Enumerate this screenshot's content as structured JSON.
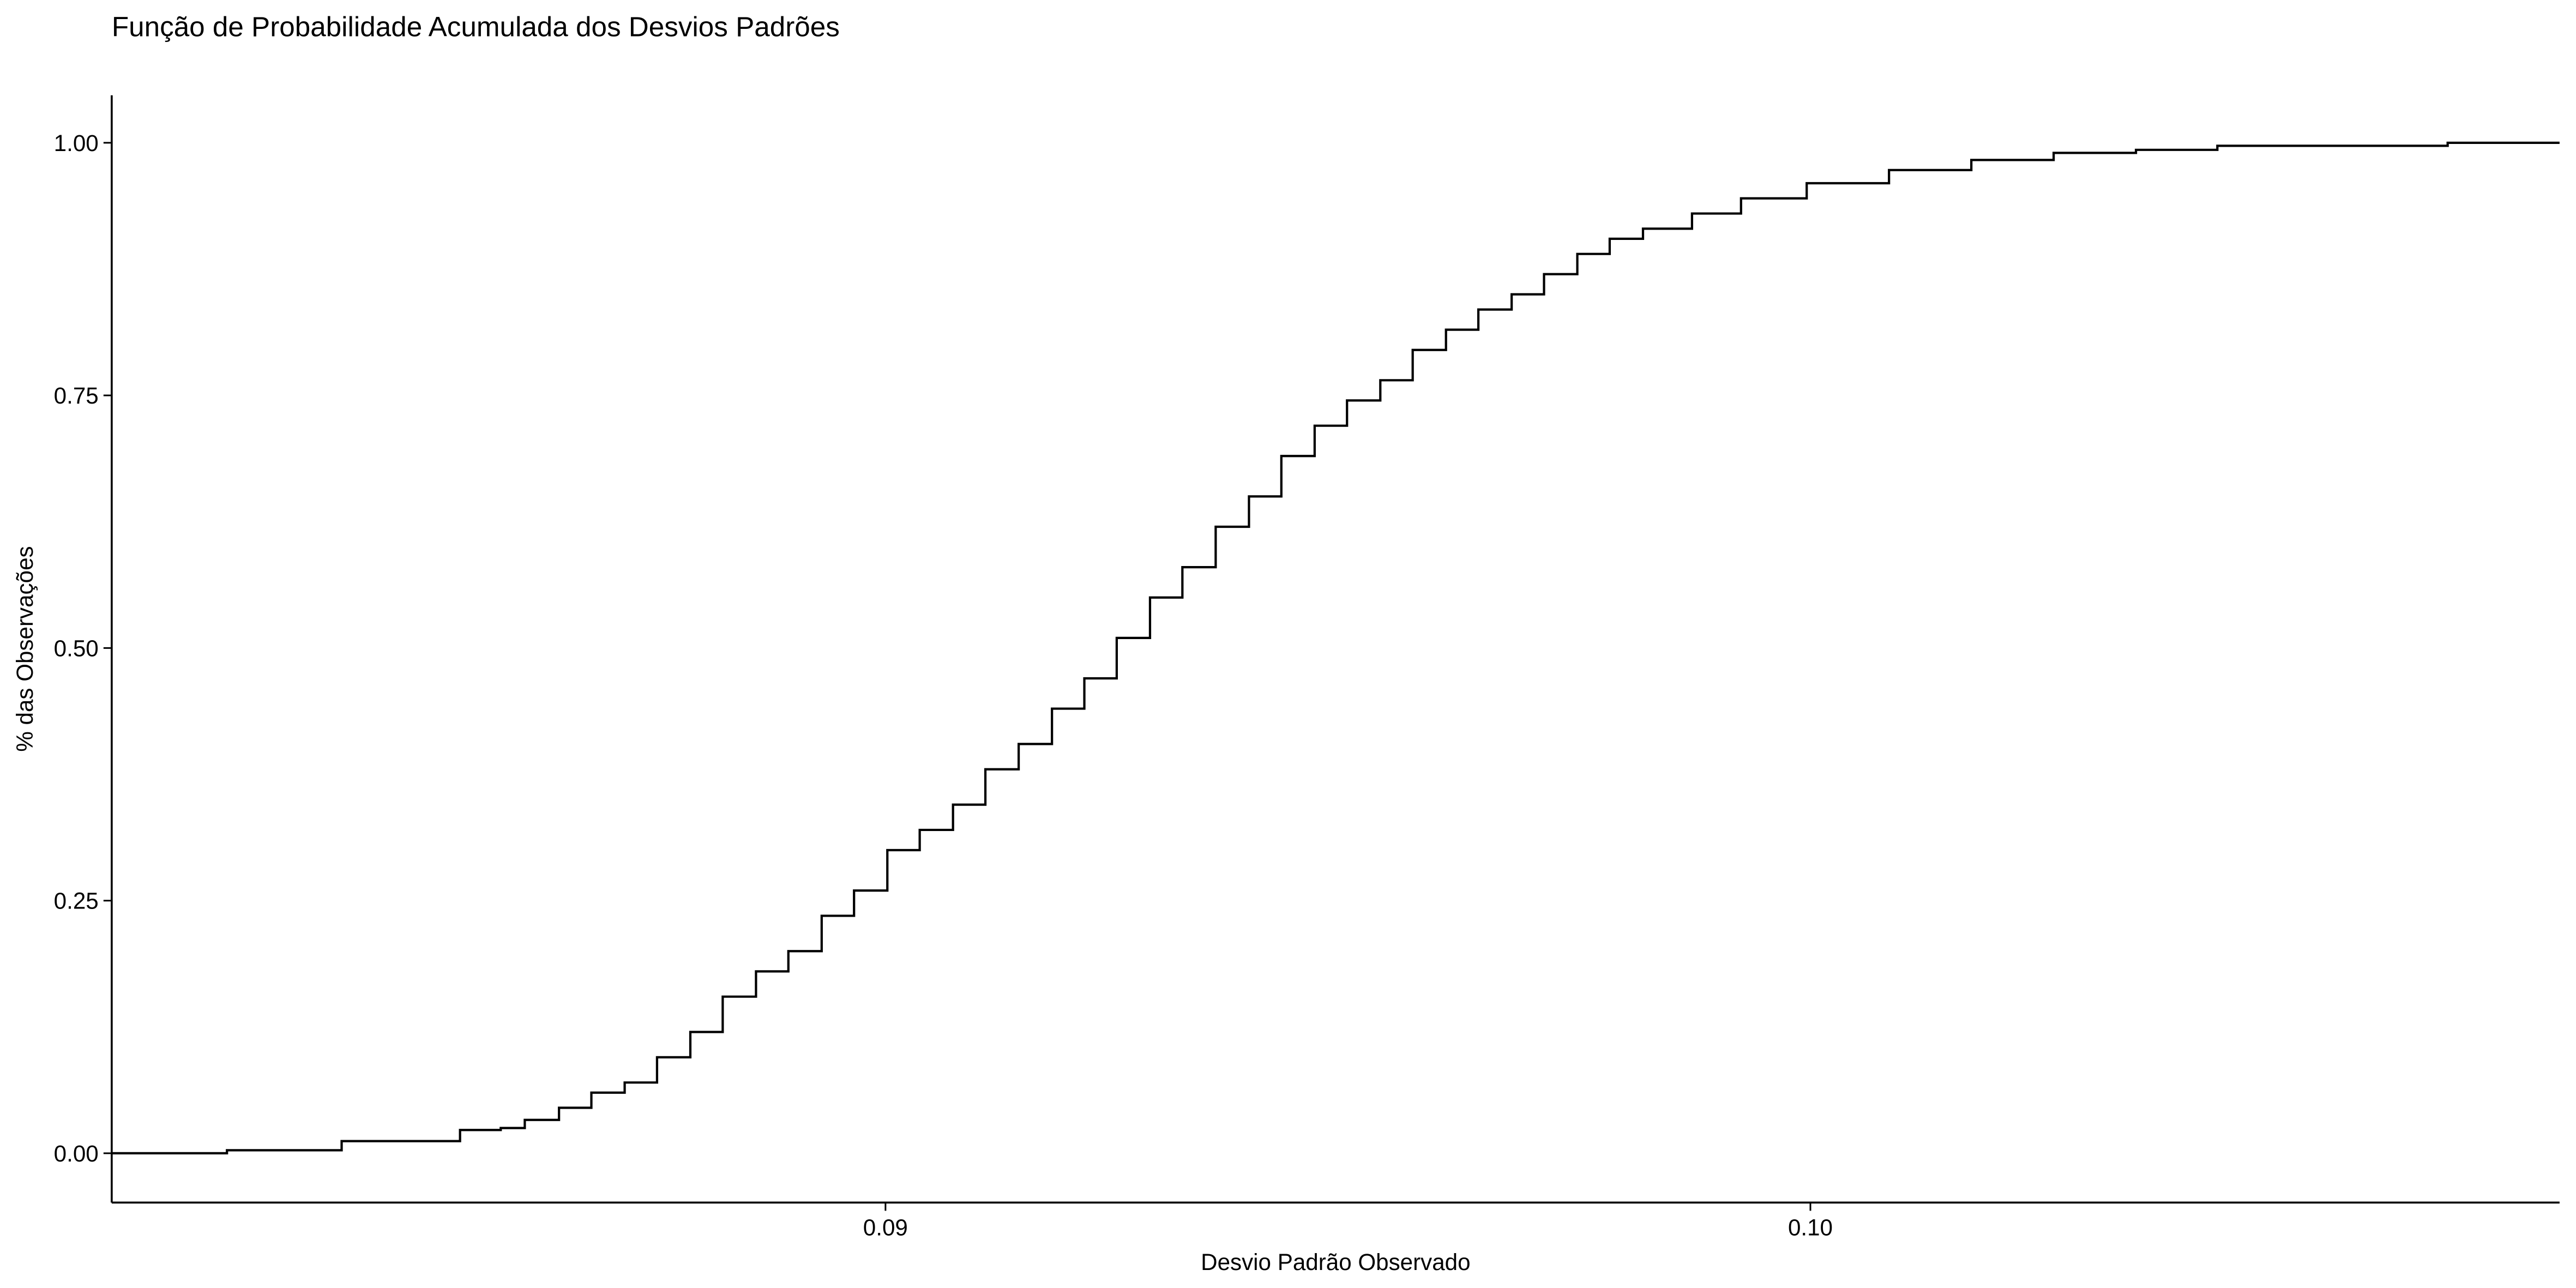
{
  "chart_data": {
    "type": "line",
    "step": "post",
    "title": "Função de Probabilidade Acumulada dos Desvios Padrões",
    "xlabel": "Desvio Padrão Observado",
    "ylabel": "% das Observações",
    "x": [
      0.08163,
      0.08288,
      0.08412,
      0.0854,
      0.08584,
      0.0861,
      0.08647,
      0.08682,
      0.08718,
      0.08753,
      0.08789,
      0.08824,
      0.0886,
      0.08895,
      0.08931,
      0.08966,
      0.09002,
      0.09037,
      0.09073,
      0.09108,
      0.09144,
      0.0918,
      0.09215,
      0.0925,
      0.09286,
      0.09321,
      0.09357,
      0.09393,
      0.09428,
      0.09464,
      0.09499,
      0.09535,
      0.0957,
      0.09606,
      0.09641,
      0.09677,
      0.09712,
      0.09748,
      0.09783,
      0.09819,
      0.09872,
      0.09925,
      0.09996,
      0.10085,
      0.10174,
      0.10263,
      0.10352,
      0.1044,
      0.10689,
      0.1081
    ],
    "series": [
      {
        "color": "#000000",
        "values": [
          0,
          0.003,
          0.012,
          0.023,
          0.025,
          0.033,
          0.045,
          0.06,
          0.07,
          0.095,
          0.12,
          0.155,
          0.18,
          0.2,
          0.235,
          0.26,
          0.3,
          0.32,
          0.345,
          0.38,
          0.405,
          0.44,
          0.47,
          0.51,
          0.55,
          0.58,
          0.62,
          0.65,
          0.69,
          0.72,
          0.745,
          0.765,
          0.795,
          0.815,
          0.835,
          0.85,
          0.87,
          0.89,
          0.905,
          0.915,
          0.93,
          0.945,
          0.96,
          0.973,
          0.983,
          0.99,
          0.993,
          0.997,
          1.0,
          1.0
        ]
      }
    ],
    "xlim": [
      0.081634,
      0.1081
    ],
    "ylim": [
      -0.0488,
      1.047
    ],
    "xticks": [
      0.09,
      {
        "value": 0.1,
        "label": "0.10"
      }
    ],
    "yticks": [
      {
        "value": 0,
        "label": "0.00"
      },
      {
        "value": 0.25,
        "label": "0.25"
      },
      {
        "value": 0.5,
        "label": "0.50"
      },
      {
        "value": 0.75,
        "label": "0.75"
      },
      {
        "value": 1,
        "label": "1.00"
      }
    ],
    "grid": false
  }
}
